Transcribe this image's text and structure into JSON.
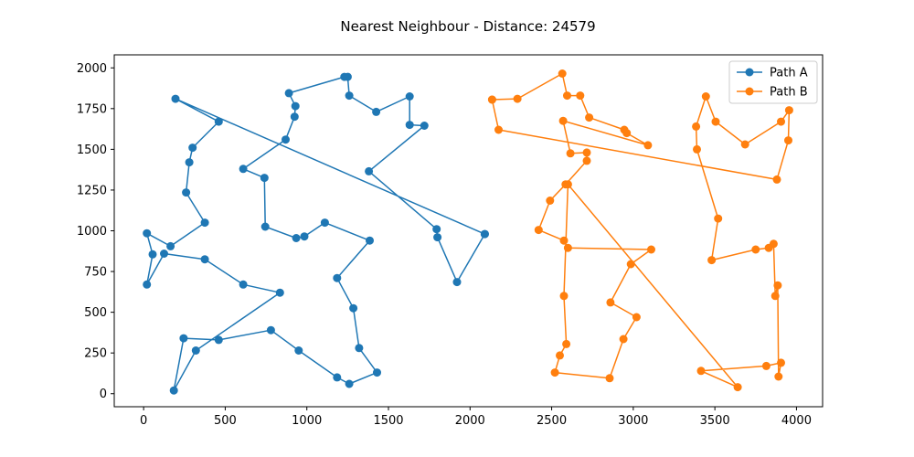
{
  "chart_data": {
    "type": "line",
    "title": "Nearest Neighbour - Distance: 24579",
    "xlabel": "",
    "ylabel": "",
    "xlim": [
      -180,
      4160
    ],
    "ylim": [
      -80,
      2080
    ],
    "xticks": [
      0,
      500,
      1000,
      1500,
      2000,
      2500,
      3000,
      3500,
      4000
    ],
    "yticks": [
      0,
      250,
      500,
      750,
      1000,
      1250,
      1500,
      1750,
      2000
    ],
    "grid": false,
    "legend": "top-right",
    "series": [
      {
        "name": "Path A",
        "color": "#1f77b4",
        "marker": "circle",
        "points": [
          [
            2090,
            980
          ],
          [
            1920,
            685
          ],
          [
            1800,
            960
          ],
          [
            1795,
            1010
          ],
          [
            1380,
            1365
          ],
          [
            1720,
            1645
          ],
          [
            1630,
            1650
          ],
          [
            1630,
            1825
          ],
          [
            1425,
            1730
          ],
          [
            1260,
            1830
          ],
          [
            1250,
            1945
          ],
          [
            1230,
            1945
          ],
          [
            890,
            1845
          ],
          [
            930,
            1765
          ],
          [
            925,
            1700
          ],
          [
            870,
            1560
          ],
          [
            610,
            1380
          ],
          [
            740,
            1325
          ],
          [
            745,
            1025
          ],
          [
            935,
            955
          ],
          [
            985,
            965
          ],
          [
            1110,
            1050
          ],
          [
            1385,
            940
          ],
          [
            1185,
            710
          ],
          [
            1285,
            525
          ],
          [
            1320,
            280
          ],
          [
            1430,
            130
          ],
          [
            1260,
            60
          ],
          [
            1185,
            100
          ],
          [
            950,
            265
          ],
          [
            780,
            390
          ],
          [
            460,
            330
          ],
          [
            245,
            340
          ],
          [
            185,
            20
          ],
          [
            320,
            265
          ],
          [
            835,
            620
          ],
          [
            610,
            670
          ],
          [
            375,
            825
          ],
          [
            125,
            860
          ],
          [
            20,
            670
          ],
          [
            55,
            855
          ],
          [
            20,
            985
          ],
          [
            165,
            905
          ],
          [
            375,
            1050
          ],
          [
            260,
            1235
          ],
          [
            280,
            1420
          ],
          [
            300,
            1510
          ],
          [
            460,
            1670
          ],
          [
            195,
            1810
          ],
          [
            2090,
            980
          ]
        ]
      },
      {
        "name": "Path B",
        "color": "#ff7f0e",
        "marker": "circle",
        "points": [
          [
            2135,
            1805
          ],
          [
            2290,
            1810
          ],
          [
            2565,
            1965
          ],
          [
            2595,
            1830
          ],
          [
            2675,
            1830
          ],
          [
            2730,
            1695
          ],
          [
            2945,
            1620
          ],
          [
            2960,
            1600
          ],
          [
            3090,
            1525
          ],
          [
            2570,
            1675
          ],
          [
            2615,
            1475
          ],
          [
            2715,
            1480
          ],
          [
            2715,
            1430
          ],
          [
            2585,
            1285
          ],
          [
            2490,
            1185
          ],
          [
            2420,
            1005
          ],
          [
            2575,
            940
          ],
          [
            2600,
            895
          ],
          [
            3110,
            885
          ],
          [
            2985,
            795
          ],
          [
            2860,
            560
          ],
          [
            3020,
            470
          ],
          [
            2940,
            335
          ],
          [
            2855,
            95
          ],
          [
            2520,
            130
          ],
          [
            2550,
            235
          ],
          [
            2590,
            305
          ],
          [
            2575,
            600
          ],
          [
            2600,
            1285
          ],
          [
            3640,
            40
          ],
          [
            3415,
            140
          ],
          [
            3815,
            170
          ],
          [
            3905,
            190
          ],
          [
            3890,
            105
          ],
          [
            3885,
            665
          ],
          [
            3870,
            600
          ],
          [
            3860,
            920
          ],
          [
            3830,
            895
          ],
          [
            3750,
            885
          ],
          [
            3480,
            820
          ],
          [
            3520,
            1075
          ],
          [
            3390,
            1500
          ],
          [
            3385,
            1640
          ],
          [
            3445,
            1825
          ],
          [
            3505,
            1670
          ],
          [
            3685,
            1530
          ],
          [
            3905,
            1670
          ],
          [
            3955,
            1740
          ],
          [
            3950,
            1555
          ],
          [
            3880,
            1315
          ],
          [
            2175,
            1620
          ],
          [
            2135,
            1805
          ]
        ]
      }
    ]
  }
}
